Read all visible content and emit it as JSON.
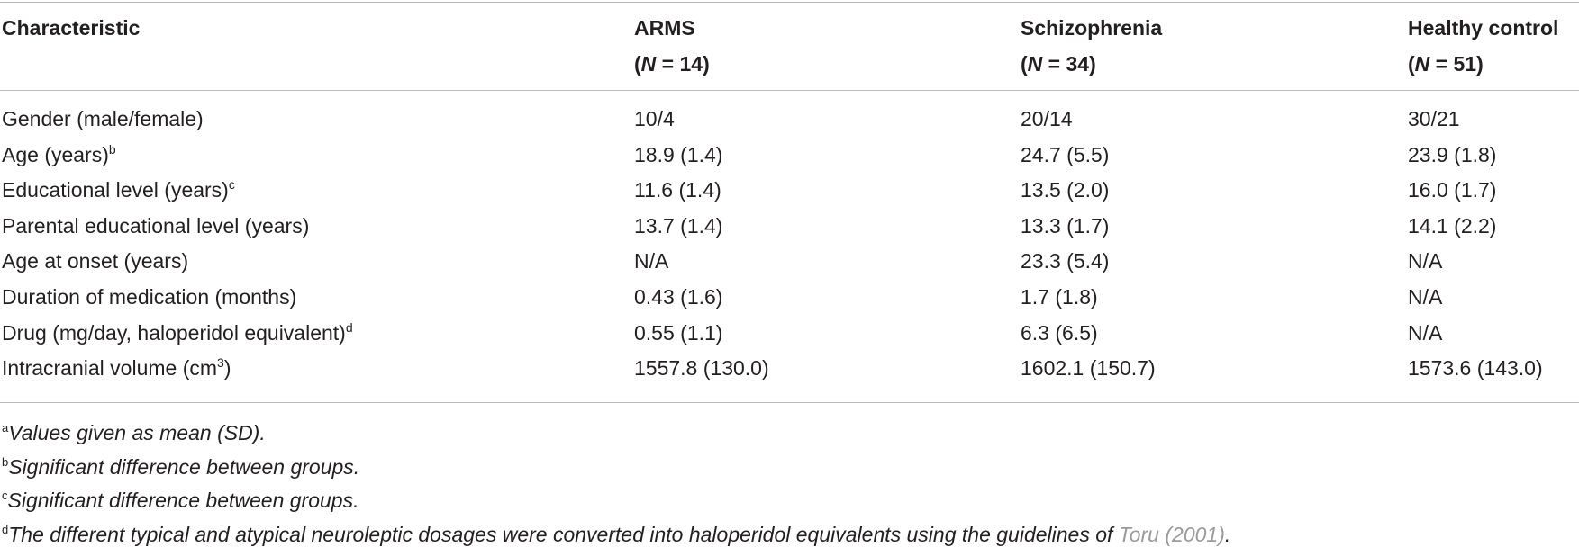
{
  "table": {
    "header": [
      {
        "name": "Characteristic"
      },
      {
        "name": "ARMS",
        "n_parts": [
          "(",
          "N",
          " = 14)"
        ]
      },
      {
        "name": "Schizophrenia",
        "n_parts": [
          "(",
          "N",
          " = 34)"
        ]
      },
      {
        "name": "Healthy control",
        "n_parts": [
          "(",
          "N",
          " = 51)"
        ]
      }
    ],
    "rows": [
      {
        "label": {
          "text": "Gender (male/female)"
        },
        "cells": [
          "10/4",
          "20/14",
          "30/21"
        ]
      },
      {
        "label": {
          "text": "Age (years)",
          "sup": "b"
        },
        "cells": [
          "18.9 (1.4)",
          "24.7 (5.5)",
          "23.9 (1.8)"
        ]
      },
      {
        "label": {
          "text": "Educational level (years)",
          "sup": "c"
        },
        "cells": [
          "11.6 (1.4)",
          "13.5 (2.0)",
          "16.0 (1.7)"
        ]
      },
      {
        "label": {
          "text": "Parental educational level (years)"
        },
        "cells": [
          "13.7 (1.4)",
          "13.3 (1.7)",
          "14.1 (2.2)"
        ]
      },
      {
        "label": {
          "text": "Age at onset (years)"
        },
        "cells": [
          "N/A",
          "23.3 (5.4)",
          "N/A"
        ]
      },
      {
        "label": {
          "text": "Duration of medication (months)"
        },
        "cells": [
          "0.43 (1.6)",
          "1.7 (1.8)",
          "N/A"
        ]
      },
      {
        "label": {
          "text": "Drug (mg/day, haloperidol equivalent)",
          "sup": "d"
        },
        "cells": [
          "0.55 (1.1)",
          "6.3 (6.5)",
          "N/A"
        ]
      },
      {
        "label": {
          "text": "Intracranial volume (cm",
          "sup": "3",
          "after": ")"
        },
        "cells": [
          "1557.8 (130.0)",
          "1602.1 (150.7)",
          "1573.6 (143.0)"
        ]
      }
    ],
    "footnotes": [
      {
        "mark": "a",
        "text": "Values given as mean (SD)."
      },
      {
        "mark": "b",
        "text": "Significant difference between groups."
      },
      {
        "mark": "c",
        "text": "Significant difference between groups."
      },
      {
        "mark": "d",
        "text": "The different typical and atypical neuroleptic dosages were converted into haloperidol equivalents using the guidelines of ",
        "link": "Toru (2001)",
        "after": "."
      }
    ]
  }
}
